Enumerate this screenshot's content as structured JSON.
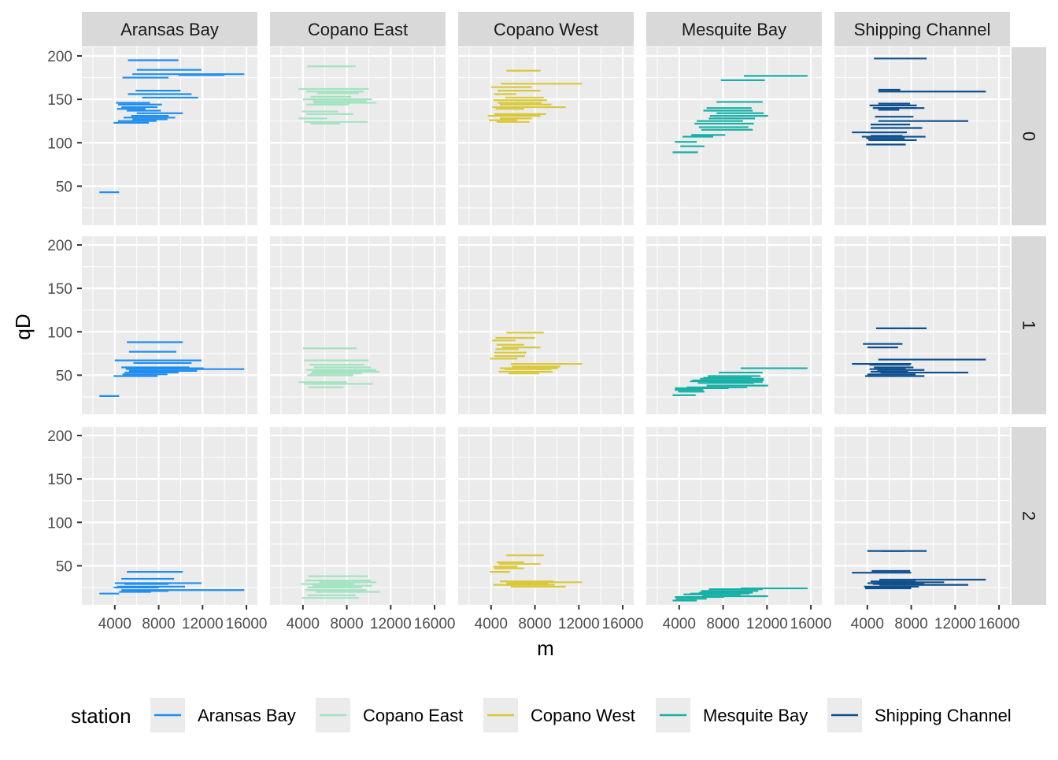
{
  "chart_data": {
    "type": "faceted-segment",
    "xlabel": "m",
    "ylabel": "qD",
    "x_ticks": [
      4000,
      8000,
      12000,
      16000
    ],
    "x_tick_labels": [
      "4000",
      "8000",
      "12000",
      "16000"
    ],
    "xlim": [
      1000,
      17000
    ],
    "y_ticks": [
      50,
      100,
      150,
      200
    ],
    "y_tick_labels": [
      "50",
      "100",
      "150",
      "200"
    ],
    "ylim": [
      5,
      210
    ],
    "grid": true,
    "legend": {
      "title": "station",
      "position": "bottom",
      "entries": [
        "Aransas Bay",
        "Copano East",
        "Copano West",
        "Mesquite Bay",
        "Shipping Channel"
      ]
    },
    "column_facets": [
      "Aransas Bay",
      "Copano East",
      "Copano West",
      "Mesquite Bay",
      "Shipping Channel"
    ],
    "row_facets": [
      "0",
      "1",
      "2"
    ],
    "colors": {
      "Aransas Bay": "#1e8ef0",
      "Copano East": "#a3e3c1",
      "Copano West": "#d9c83a",
      "Mesquite Bay": "#17b0a6",
      "Shipping Channel": "#0e4f8e"
    },
    "series": [
      {
        "name": "Aransas Bay",
        "row0": [
          [
            2600,
            4400,
            43
          ],
          [
            5200,
            9800,
            195
          ],
          [
            6000,
            11900,
            184
          ],
          [
            5600,
            15800,
            179
          ],
          [
            9800,
            14000,
            178
          ],
          [
            4700,
            8900,
            175
          ],
          [
            5900,
            10000,
            160
          ],
          [
            5200,
            11000,
            156
          ],
          [
            6500,
            11600,
            152
          ],
          [
            4100,
            7200,
            146
          ],
          [
            4300,
            8300,
            144
          ],
          [
            4600,
            7900,
            141
          ],
          [
            4200,
            6800,
            139
          ],
          [
            5100,
            8200,
            137
          ],
          [
            6000,
            10200,
            134
          ],
          [
            5500,
            8900,
            131
          ],
          [
            4800,
            9500,
            129
          ],
          [
            5600,
            8800,
            127
          ],
          [
            4300,
            7800,
            125
          ],
          [
            3900,
            7100,
            123
          ]
        ],
        "row1": [
          [
            2600,
            4400,
            26
          ],
          [
            5100,
            10200,
            88
          ],
          [
            5300,
            9600,
            77
          ],
          [
            4000,
            11900,
            67
          ],
          [
            5700,
            11000,
            64
          ],
          [
            4600,
            10800,
            59
          ],
          [
            5000,
            12100,
            58
          ],
          [
            5000,
            15800,
            57
          ],
          [
            5300,
            11500,
            55
          ],
          [
            4900,
            9800,
            53
          ],
          [
            4700,
            8800,
            51
          ],
          [
            3900,
            7900,
            49
          ]
        ],
        "row2": [
          [
            2600,
            4400,
            18
          ],
          [
            5100,
            10200,
            43
          ],
          [
            4600,
            9400,
            35
          ],
          [
            4000,
            11900,
            30
          ],
          [
            4900,
            8900,
            29
          ],
          [
            4200,
            10400,
            26
          ],
          [
            4600,
            15800,
            22
          ],
          [
            5300,
            8900,
            21
          ],
          [
            4400,
            7300,
            20
          ],
          [
            3900,
            8000,
            25
          ]
        ]
      },
      {
        "name": "Copano East",
        "row0": [
          [
            4400,
            8800,
            188
          ],
          [
            3600,
            10000,
            162
          ],
          [
            4300,
            9500,
            159
          ],
          [
            5300,
            9100,
            157
          ],
          [
            4700,
            8400,
            153
          ],
          [
            4000,
            10300,
            150
          ],
          [
            4900,
            9800,
            148
          ],
          [
            5000,
            10700,
            146
          ],
          [
            4300,
            8200,
            144
          ],
          [
            3900,
            7200,
            136
          ],
          [
            4300,
            8600,
            133
          ],
          [
            3600,
            6200,
            128
          ],
          [
            4100,
            9900,
            124
          ],
          [
            4700,
            7400,
            122
          ]
        ],
        "row1": [
          [
            4000,
            8900,
            81
          ],
          [
            4100,
            10000,
            67
          ],
          [
            4600,
            9600,
            62
          ],
          [
            5000,
            10200,
            59
          ],
          [
            4300,
            10700,
            56
          ],
          [
            5100,
            10300,
            55
          ],
          [
            4800,
            11000,
            54
          ],
          [
            4700,
            9400,
            52
          ],
          [
            4400,
            8600,
            50
          ],
          [
            3600,
            8000,
            42
          ],
          [
            4100,
            10400,
            40
          ],
          [
            4500,
            7700,
            36
          ]
        ],
        "row2": [
          [
            4500,
            9900,
            38
          ],
          [
            4200,
            10200,
            33
          ],
          [
            5500,
            10700,
            31
          ],
          [
            3800,
            8700,
            29
          ],
          [
            4900,
            10300,
            27
          ],
          [
            4400,
            9400,
            25
          ],
          [
            4200,
            9800,
            22
          ],
          [
            5200,
            11000,
            20
          ],
          [
            4400,
            8800,
            16
          ],
          [
            3900,
            9100,
            13
          ]
        ]
      },
      {
        "name": "Copano West",
        "row0": [
          [
            5400,
            8500,
            183
          ],
          [
            4900,
            12300,
            168
          ],
          [
            4000,
            7700,
            164
          ],
          [
            4600,
            8500,
            160
          ],
          [
            4300,
            6300,
            156
          ],
          [
            5300,
            8800,
            152
          ],
          [
            4200,
            9100,
            149
          ],
          [
            4600,
            8600,
            146
          ],
          [
            4800,
            9500,
            144
          ],
          [
            4100,
            10800,
            141
          ],
          [
            4400,
            7000,
            139
          ],
          [
            4300,
            9000,
            133
          ],
          [
            3700,
            8500,
            131
          ],
          [
            4800,
            7700,
            128
          ],
          [
            3800,
            6400,
            126
          ],
          [
            4500,
            7500,
            124
          ]
        ],
        "row1": [
          [
            5400,
            8800,
            99
          ],
          [
            4400,
            8000,
            93
          ],
          [
            4100,
            6200,
            90
          ],
          [
            4500,
            7000,
            85
          ],
          [
            5000,
            8500,
            82
          ],
          [
            4400,
            6500,
            80
          ],
          [
            4300,
            7200,
            76
          ],
          [
            4300,
            7100,
            72
          ],
          [
            3900,
            6400,
            69
          ],
          [
            5800,
            12300,
            63
          ],
          [
            5900,
            10300,
            60
          ],
          [
            4800,
            10100,
            58
          ],
          [
            5200,
            9500,
            57
          ],
          [
            4700,
            9600,
            54
          ],
          [
            5600,
            8400,
            52
          ]
        ],
        "row2": [
          [
            5400,
            8800,
            62
          ],
          [
            4500,
            7000,
            54
          ],
          [
            4700,
            8500,
            52
          ],
          [
            4200,
            6400,
            49
          ],
          [
            4300,
            7000,
            47
          ],
          [
            3900,
            5700,
            43
          ],
          [
            4800,
            9700,
            32
          ],
          [
            5900,
            12300,
            31
          ],
          [
            5400,
            9200,
            30
          ],
          [
            4200,
            9800,
            28
          ],
          [
            5800,
            10800,
            26
          ]
        ]
      },
      {
        "name": "Mesquite Bay",
        "row0": [
          [
            9900,
            15700,
            177
          ],
          [
            7800,
            11800,
            172
          ],
          [
            7400,
            11600,
            147
          ],
          [
            6500,
            10600,
            140
          ],
          [
            6200,
            10700,
            137
          ],
          [
            7400,
            11700,
            134
          ],
          [
            6800,
            12100,
            131
          ],
          [
            6700,
            10900,
            128
          ],
          [
            5600,
            9800,
            125
          ],
          [
            5400,
            10800,
            122
          ],
          [
            5800,
            10300,
            118
          ],
          [
            6000,
            10700,
            115
          ],
          [
            5100,
            8200,
            109
          ],
          [
            4300,
            7100,
            107
          ],
          [
            3600,
            5600,
            101
          ],
          [
            4100,
            6300,
            96
          ],
          [
            3400,
            5700,
            89
          ]
        ],
        "row1": [
          [
            9600,
            15700,
            58
          ],
          [
            7600,
            11600,
            53
          ],
          [
            6600,
            11400,
            49
          ],
          [
            6200,
            10600,
            47
          ],
          [
            5900,
            11700,
            46
          ],
          [
            5200,
            11700,
            44
          ],
          [
            5000,
            10400,
            43
          ],
          [
            6700,
            11600,
            42
          ],
          [
            5700,
            10800,
            41
          ],
          [
            6500,
            12100,
            38
          ],
          [
            4700,
            10200,
            36
          ],
          [
            3600,
            8500,
            35
          ],
          [
            3600,
            6200,
            33
          ],
          [
            3900,
            6300,
            31
          ],
          [
            3400,
            5500,
            27
          ]
        ],
        "row2": [
          [
            9600,
            15700,
            24
          ],
          [
            6700,
            11600,
            23
          ],
          [
            6000,
            11200,
            21
          ],
          [
            5800,
            10700,
            19
          ],
          [
            5000,
            10400,
            18
          ],
          [
            4400,
            9600,
            17
          ],
          [
            6100,
            12100,
            15
          ],
          [
            3600,
            8100,
            14
          ],
          [
            3700,
            6500,
            12
          ],
          [
            3400,
            5600,
            10
          ]
        ]
      },
      {
        "name": "Shipping Channel",
        "row0": [
          [
            4600,
            9400,
            197
          ],
          [
            5000,
            7000,
            161
          ],
          [
            5000,
            14800,
            159
          ],
          [
            5000,
            7900,
            145
          ],
          [
            4200,
            8500,
            143
          ],
          [
            4500,
            8400,
            140
          ],
          [
            4600,
            9200,
            140
          ],
          [
            5000,
            6900,
            138
          ],
          [
            4700,
            8200,
            130
          ],
          [
            5000,
            13200,
            125
          ],
          [
            4300,
            7900,
            121
          ],
          [
            4300,
            9000,
            117
          ],
          [
            2600,
            7600,
            112
          ],
          [
            3900,
            7500,
            112
          ],
          [
            4300,
            7200,
            108
          ],
          [
            3500,
            9300,
            107
          ],
          [
            3900,
            7400,
            105
          ],
          [
            4100,
            8500,
            103
          ],
          [
            3900,
            7500,
            98
          ]
        ],
        "row1": [
          [
            4800,
            9400,
            104
          ],
          [
            3600,
            7200,
            86
          ],
          [
            4000,
            6800,
            82
          ],
          [
            5000,
            14800,
            68
          ],
          [
            2600,
            8000,
            63
          ],
          [
            4200,
            7900,
            62
          ],
          [
            4600,
            8200,
            59
          ],
          [
            4200,
            7500,
            57
          ],
          [
            4900,
            9200,
            56
          ],
          [
            4300,
            7700,
            54
          ],
          [
            5200,
            13200,
            53
          ],
          [
            4000,
            8400,
            51
          ],
          [
            3800,
            9200,
            49
          ]
        ],
        "row2": [
          [
            4000,
            9400,
            67
          ],
          [
            5300,
            7400,
            67
          ],
          [
            2600,
            8000,
            42
          ],
          [
            4400,
            7900,
            44
          ],
          [
            5100,
            14800,
            34
          ],
          [
            4300,
            8400,
            32
          ],
          [
            4900,
            11000,
            31
          ],
          [
            4000,
            8700,
            30
          ],
          [
            4500,
            9200,
            29
          ],
          [
            5100,
            13200,
            28
          ],
          [
            3700,
            8700,
            26
          ],
          [
            3800,
            8000,
            24
          ]
        ]
      }
    ]
  }
}
